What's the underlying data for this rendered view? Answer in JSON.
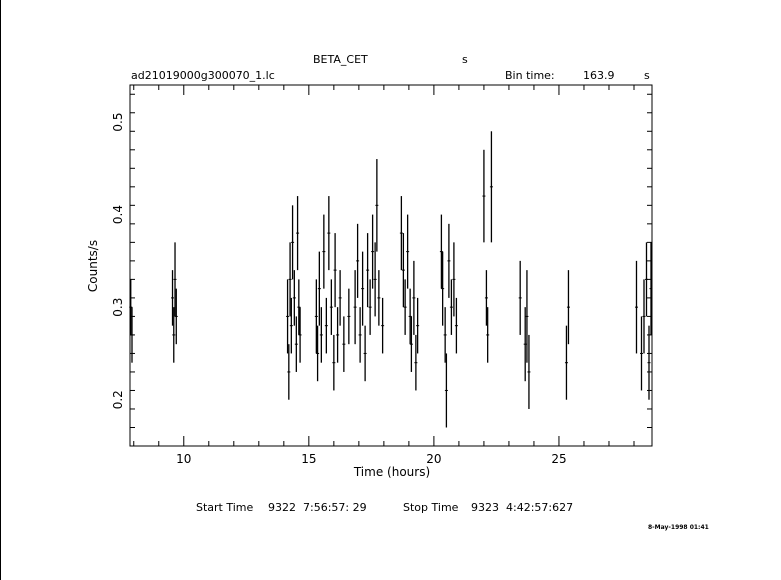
{
  "header": {
    "object": "BETA_CET",
    "object_unit": "s",
    "filename": "ad21019000g300070_1.lc",
    "bin_time_label": "Bin time:",
    "bin_time_value": "163.9",
    "bin_time_unit": "s"
  },
  "footer": {
    "start_label": "Start Time",
    "start_value": "9322  7:56:57: 29",
    "stop_label": "Stop Time",
    "stop_value": "9323  4:42:57:627",
    "date_stamp": "8-May-1998 01:41"
  },
  "chart_data": {
    "type": "scatter",
    "xlabel": "Time (hours)",
    "ylabel": "Counts/s",
    "xlim": [
      7.85,
      28.72
    ],
    "ylim": [
      0.15,
      0.54
    ],
    "xticks": [
      "10",
      "15",
      "20",
      "25"
    ],
    "yticks": [
      "0.2",
      "0.3",
      "0.4",
      "0.5"
    ],
    "grid": false,
    "points": [
      [
        7.88,
        0.3,
        0.03
      ],
      [
        7.93,
        0.27,
        0.03
      ],
      [
        9.55,
        0.31,
        0.03
      ],
      [
        9.6,
        0.27,
        0.03
      ],
      [
        9.65,
        0.33,
        0.04
      ],
      [
        9.7,
        0.29,
        0.03
      ],
      [
        14.15,
        0.29,
        0.04
      ],
      [
        14.2,
        0.23,
        0.03
      ],
      [
        14.25,
        0.33,
        0.04
      ],
      [
        14.3,
        0.28,
        0.03
      ],
      [
        14.35,
        0.37,
        0.04
      ],
      [
        14.42,
        0.31,
        0.03
      ],
      [
        14.5,
        0.26,
        0.03
      ],
      [
        14.55,
        0.38,
        0.04
      ],
      [
        14.6,
        0.3,
        0.03
      ],
      [
        14.65,
        0.27,
        0.03
      ],
      [
        15.3,
        0.29,
        0.04
      ],
      [
        15.35,
        0.25,
        0.03
      ],
      [
        15.42,
        0.32,
        0.04
      ],
      [
        15.5,
        0.27,
        0.03
      ],
      [
        15.6,
        0.36,
        0.04
      ],
      [
        15.7,
        0.28,
        0.03
      ],
      [
        15.8,
        0.38,
        0.04
      ],
      [
        15.9,
        0.3,
        0.03
      ],
      [
        16.0,
        0.24,
        0.03
      ],
      [
        16.05,
        0.34,
        0.04
      ],
      [
        16.15,
        0.27,
        0.03
      ],
      [
        16.25,
        0.31,
        0.03
      ],
      [
        16.4,
        0.26,
        0.03
      ],
      [
        16.6,
        0.29,
        0.03
      ],
      [
        16.85,
        0.3,
        0.04
      ],
      [
        16.95,
        0.35,
        0.04
      ],
      [
        17.05,
        0.27,
        0.03
      ],
      [
        17.15,
        0.32,
        0.04
      ],
      [
        17.25,
        0.25,
        0.03
      ],
      [
        17.35,
        0.34,
        0.04
      ],
      [
        17.45,
        0.3,
        0.03
      ],
      [
        17.55,
        0.36,
        0.04
      ],
      [
        17.65,
        0.33,
        0.04
      ],
      [
        17.72,
        0.41,
        0.05
      ],
      [
        17.8,
        0.31,
        0.03
      ],
      [
        17.95,
        0.28,
        0.03
      ],
      [
        18.7,
        0.38,
        0.04
      ],
      [
        18.78,
        0.34,
        0.04
      ],
      [
        18.85,
        0.3,
        0.03
      ],
      [
        18.95,
        0.36,
        0.04
      ],
      [
        19.05,
        0.29,
        0.03
      ],
      [
        19.1,
        0.26,
        0.03
      ],
      [
        19.2,
        0.31,
        0.04
      ],
      [
        19.28,
        0.24,
        0.03
      ],
      [
        19.35,
        0.28,
        0.03
      ],
      [
        20.3,
        0.36,
        0.04
      ],
      [
        20.35,
        0.32,
        0.04
      ],
      [
        20.45,
        0.27,
        0.03
      ],
      [
        20.5,
        0.21,
        0.04
      ],
      [
        20.6,
        0.35,
        0.04
      ],
      [
        20.7,
        0.3,
        0.03
      ],
      [
        20.8,
        0.33,
        0.04
      ],
      [
        20.9,
        0.28,
        0.03
      ],
      [
        22.0,
        0.42,
        0.05
      ],
      [
        22.1,
        0.31,
        0.03
      ],
      [
        22.15,
        0.27,
        0.03
      ],
      [
        22.3,
        0.43,
        0.06
      ],
      [
        23.45,
        0.31,
        0.04
      ],
      [
        23.65,
        0.26,
        0.04
      ],
      [
        23.72,
        0.29,
        0.05
      ],
      [
        23.8,
        0.23,
        0.04
      ],
      [
        25.3,
        0.24,
        0.04
      ],
      [
        25.38,
        0.3,
        0.04
      ],
      [
        28.1,
        0.3,
        0.05
      ],
      [
        28.3,
        0.25,
        0.04
      ],
      [
        28.4,
        0.29,
        0.04
      ],
      [
        28.5,
        0.33,
        0.04
      ],
      [
        28.6,
        0.24,
        0.04
      ],
      [
        28.68,
        0.32,
        0.05
      ]
    ]
  }
}
